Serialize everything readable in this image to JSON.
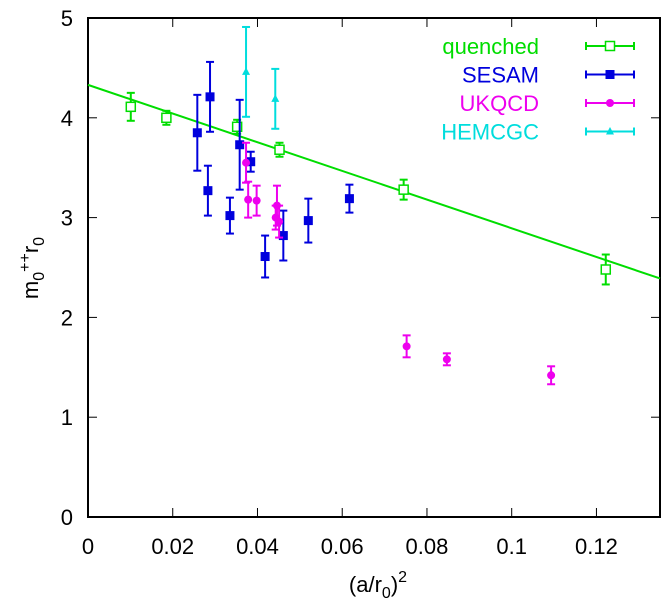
{
  "chart_data": {
    "type": "scatter",
    "title": "",
    "xlabel": "(a/r0)^2",
    "ylabel": "m0++ r0",
    "xlim": [
      0,
      0.135
    ],
    "ylim": [
      0,
      5
    ],
    "x_ticks": [
      {
        "v": 0,
        "label": "0"
      },
      {
        "v": 0.02,
        "label": "0.02"
      },
      {
        "v": 0.04,
        "label": "0.04"
      },
      {
        "v": 0.06,
        "label": "0.06"
      },
      {
        "v": 0.08,
        "label": "0.08"
      },
      {
        "v": 0.1,
        "label": "0.1"
      },
      {
        "v": 0.12,
        "label": "0.12"
      }
    ],
    "y_ticks": [
      {
        "v": 0,
        "label": "0"
      },
      {
        "v": 1,
        "label": "1"
      },
      {
        "v": 2,
        "label": "2"
      },
      {
        "v": 3,
        "label": "3"
      },
      {
        "v": 4,
        "label": "4"
      },
      {
        "v": 5,
        "label": "5"
      }
    ],
    "grid": false,
    "legend_position": "top-right",
    "fit_line": {
      "series": "quenched",
      "x": [
        0,
        0.135
      ],
      "y": [
        4.33,
        2.39
      ],
      "color": "#00dd00"
    },
    "series": [
      {
        "name": "quenched",
        "color": "#00dd00",
        "marker": "open-square",
        "points": [
          {
            "x": 0.0101,
            "y": 4.11,
            "err": 0.14
          },
          {
            "x": 0.0185,
            "y": 4.0,
            "err": 0.07
          },
          {
            "x": 0.0352,
            "y": 3.91,
            "err": 0.07
          },
          {
            "x": 0.0452,
            "y": 3.68,
            "err": 0.07
          },
          {
            "x": 0.0745,
            "y": 3.28,
            "err": 0.1
          },
          {
            "x": 0.1222,
            "y": 2.48,
            "err": 0.15
          }
        ]
      },
      {
        "name": "SESAM",
        "color": "#0000dd",
        "marker": "filled-square",
        "points": [
          {
            "x": 0.0258,
            "y": 3.85,
            "err": 0.38
          },
          {
            "x": 0.0283,
            "y": 3.27,
            "err": 0.25
          },
          {
            "x": 0.0288,
            "y": 4.21,
            "err": 0.35
          },
          {
            "x": 0.0335,
            "y": 3.02,
            "err": 0.18
          },
          {
            "x": 0.0358,
            "y": 3.73,
            "err": 0.45
          },
          {
            "x": 0.0384,
            "y": 3.56,
            "err": 0.1
          },
          {
            "x": 0.0418,
            "y": 2.61,
            "err": 0.21
          },
          {
            "x": 0.0461,
            "y": 2.82,
            "err": 0.25
          },
          {
            "x": 0.052,
            "y": 2.97,
            "err": 0.22
          },
          {
            "x": 0.0617,
            "y": 3.19,
            "err": 0.14
          }
        ]
      },
      {
        "name": "UKQCD",
        "color": "#ee00ee",
        "marker": "filled-circle",
        "points": [
          {
            "x": 0.0373,
            "y": 3.55,
            "err": 0.2
          },
          {
            "x": 0.0378,
            "y": 3.18,
            "err": 0.18
          },
          {
            "x": 0.0398,
            "y": 3.17,
            "err": 0.15
          },
          {
            "x": 0.0443,
            "y": 3.0,
            "err": 0.12
          },
          {
            "x": 0.0446,
            "y": 3.12,
            "err": 0.2
          },
          {
            "x": 0.0451,
            "y": 2.96,
            "err": 0.16
          },
          {
            "x": 0.0752,
            "y": 1.71,
            "err": 0.11
          },
          {
            "x": 0.0847,
            "y": 1.58,
            "err": 0.06
          },
          {
            "x": 0.1093,
            "y": 1.42,
            "err": 0.09
          }
        ]
      },
      {
        "name": "HEMCGC",
        "color": "#00dddd",
        "marker": "filled-triangle",
        "points": [
          {
            "x": 0.0373,
            "y": 4.46,
            "err": 0.45
          },
          {
            "x": 0.0442,
            "y": 4.19,
            "err": 0.3
          }
        ]
      }
    ]
  }
}
